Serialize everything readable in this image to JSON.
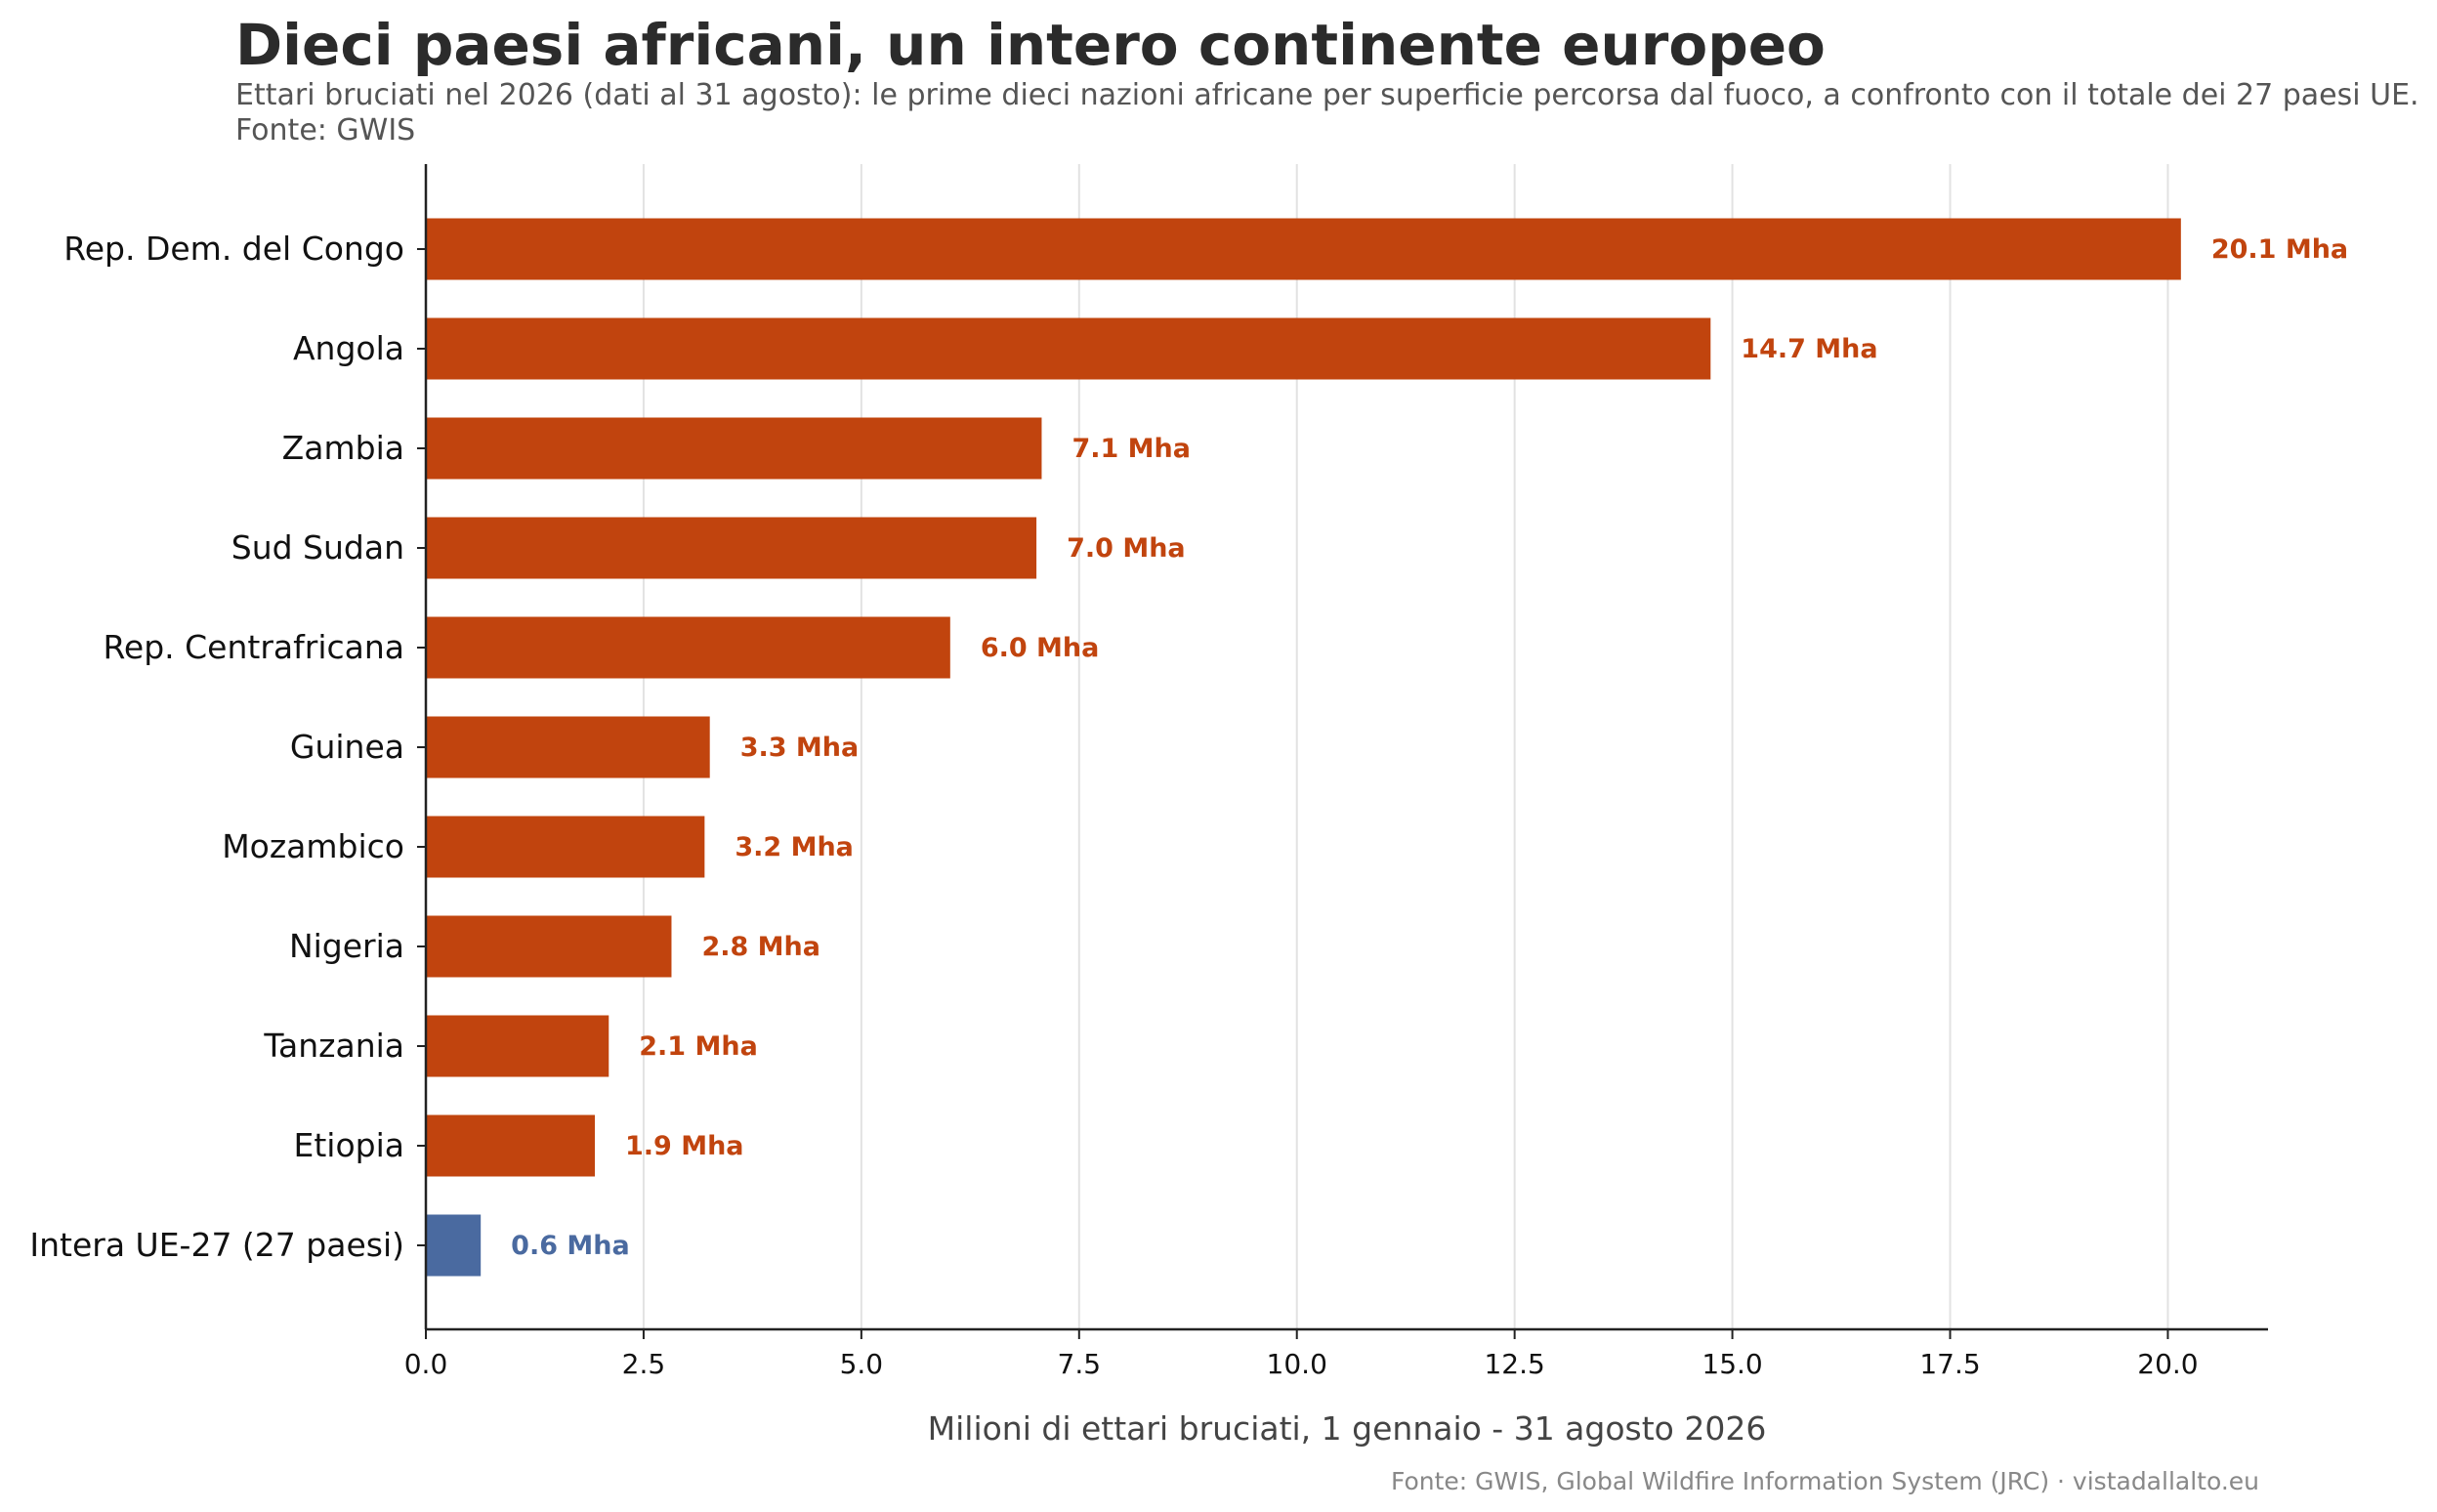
{
  "chart_data": {
    "type": "bar",
    "orientation": "horizontal",
    "title": "Dieci paesi africani, un intero continente europeo",
    "subtitle": "Ettari bruciati nel 2026 (dati al 31 agosto): le prime dieci nazioni africane per superficie percorsa dal fuoco, a confronto con il totale dei 27 paesi UE. Fonte: GWIS",
    "xlabel": "Milioni di ettari bruciati, 1 gennaio - 31 agosto 2026",
    "ylabel": "",
    "xlim": [
      0,
      21.15
    ],
    "xticks": [
      "0.0",
      "2.5",
      "5.0",
      "7.5",
      "10.0",
      "12.5",
      "15.0",
      "17.5",
      "20.0"
    ],
    "grid": "vertical",
    "categories": [
      "Rep. Dem. del Congo",
      "Angola",
      "Zambia",
      "Sud Sudan",
      "Rep. Centrafricana",
      "Guinea",
      "Mozambico",
      "Nigeria",
      "Tanzania",
      "Etiopia",
      "Intera UE-27 (27 paesi)"
    ],
    "values": [
      20.15,
      14.75,
      7.07,
      7.01,
      6.02,
      3.26,
      3.2,
      2.82,
      2.1,
      1.94,
      0.63
    ],
    "value_labels": [
      "20.1 Mha",
      "14.7 Mha",
      "7.1 Mha",
      "7.0 Mha",
      "6.0 Mha",
      "3.3 Mha",
      "3.2 Mha",
      "2.8 Mha",
      "2.1 Mha",
      "1.9 Mha",
      "0.6 Mha"
    ],
    "colors": [
      "#c1440e",
      "#c1440e",
      "#c1440e",
      "#c1440e",
      "#c1440e",
      "#c1440e",
      "#c1440e",
      "#c1440e",
      "#c1440e",
      "#c1440e",
      "#4a6aa0"
    ],
    "source_note": "Fonte: GWIS, Global Wildfire Information System (JRC) · vistadallalto.eu"
  }
}
